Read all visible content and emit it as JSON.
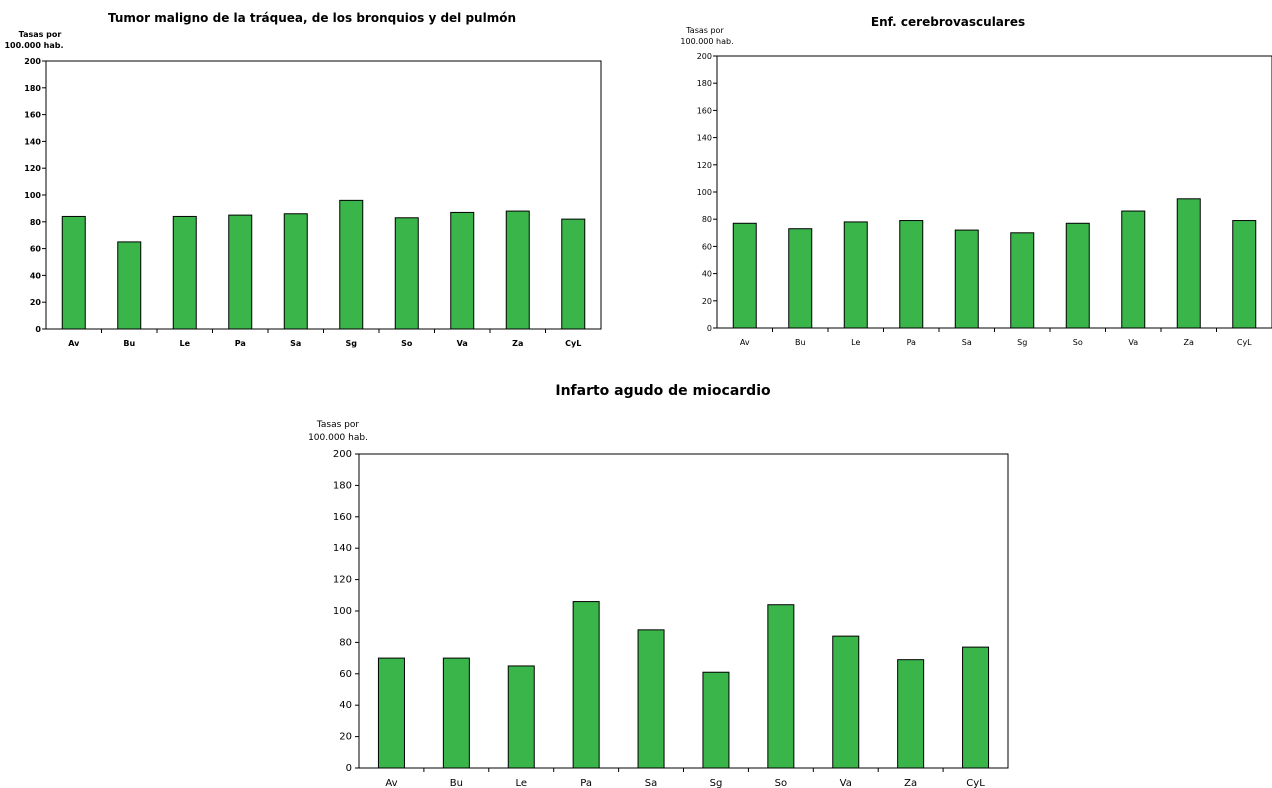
{
  "chart_data": [
    {
      "type": "bar",
      "title": "Tumor maligno de la tráquea, de los bronquios y del pulmón",
      "ylabel_line1": "Tasas por",
      "ylabel_line2": "100.000 hab.",
      "ylim": [
        0,
        200
      ],
      "yticks": [
        0,
        20,
        40,
        60,
        80,
        100,
        120,
        140,
        160,
        180,
        200
      ],
      "categories": [
        "Av",
        "Bu",
        "Le",
        "Pa",
        "Sa",
        "Sg",
        "So",
        "Va",
        "Za",
        "CyL"
      ],
      "values": [
        84,
        65,
        84,
        85,
        86,
        96,
        83,
        87,
        88,
        82
      ],
      "bar_color": "#3ab54a"
    },
    {
      "type": "bar",
      "title": "Enf. cerebrovasculares",
      "ylabel_line1": "Tasas por",
      "ylabel_line2": "100.000 hab.",
      "ylim": [
        0,
        200
      ],
      "yticks": [
        0,
        20,
        40,
        60,
        80,
        100,
        120,
        140,
        160,
        180,
        200
      ],
      "categories": [
        "Av",
        "Bu",
        "Le",
        "Pa",
        "Sa",
        "Sg",
        "So",
        "Va",
        "Za",
        "CyL"
      ],
      "values": [
        77,
        73,
        78,
        79,
        72,
        70,
        77,
        86,
        95,
        79
      ],
      "bar_color": "#3ab54a"
    },
    {
      "type": "bar",
      "title": "Infarto agudo de miocardio",
      "ylabel_line1": "Tasas por",
      "ylabel_line2": "100.000 hab.",
      "ylim": [
        0,
        200
      ],
      "yticks": [
        0,
        20,
        40,
        60,
        80,
        100,
        120,
        140,
        160,
        180,
        200
      ],
      "categories": [
        "Av",
        "Bu",
        "Le",
        "Pa",
        "Sa",
        "Sg",
        "So",
        "Va",
        "Za",
        "CyL"
      ],
      "values": [
        70,
        70,
        65,
        106,
        88,
        61,
        104,
        84,
        69,
        77
      ],
      "bar_color": "#3ab54a"
    }
  ]
}
